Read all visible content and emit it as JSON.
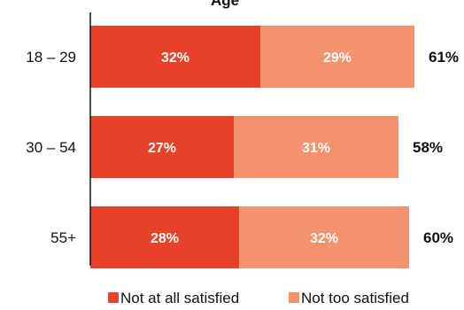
{
  "chart_data": {
    "type": "bar",
    "orientation": "horizontal",
    "stacked": true,
    "title": "Age",
    "categories": [
      "18 – 29",
      "30 – 54",
      "55+"
    ],
    "series": [
      {
        "name": "Not at all satisfied",
        "color": "#e8412a",
        "values": [
          32,
          27,
          28
        ]
      },
      {
        "name": "Not too satisfied",
        "color": "#f5926e",
        "values": [
          29,
          31,
          32
        ]
      }
    ],
    "totals": [
      61,
      58,
      60
    ],
    "value_suffix": "%",
    "axis_max": 70,
    "legend_position": "bottom"
  }
}
